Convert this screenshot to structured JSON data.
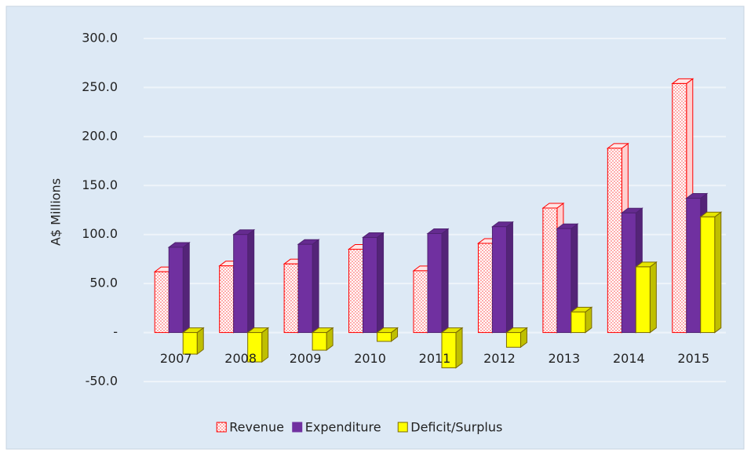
{
  "chart_data": {
    "type": "bar3d",
    "y_label": "A$ Millions",
    "categories": [
      "2007",
      "2008",
      "2009",
      "2010",
      "2011",
      "2012",
      "2013",
      "2014",
      "2015"
    ],
    "series": [
      {
        "name": "Revenue",
        "color": "#ff0000",
        "values": [
          62,
          68,
          70,
          85,
          63,
          91,
          127,
          188,
          254
        ]
      },
      {
        "name": "Expenditure",
        "color": "#7030a0",
        "values": [
          87,
          100,
          90,
          97,
          101,
          108,
          106,
          122,
          137
        ]
      },
      {
        "name": "Deficit/Surplus",
        "color": "#ffff00",
        "values": [
          -22,
          -30,
          -18,
          -9,
          -36,
          -15,
          21,
          67,
          118
        ]
      }
    ],
    "ylim": [
      -50,
      300
    ],
    "yticks": [
      {
        "value": -50,
        "label": "-50.0"
      },
      {
        "value": 0,
        "label": "-"
      },
      {
        "value": 50,
        "label": "50.0"
      },
      {
        "value": 100,
        "label": "100.0"
      },
      {
        "value": 150,
        "label": "150.0"
      },
      {
        "value": 200,
        "label": "200.0"
      },
      {
        "value": 250,
        "label": "250.0"
      },
      {
        "value": 300,
        "label": "300.0"
      }
    ],
    "grid": true,
    "legend": "bottom"
  }
}
